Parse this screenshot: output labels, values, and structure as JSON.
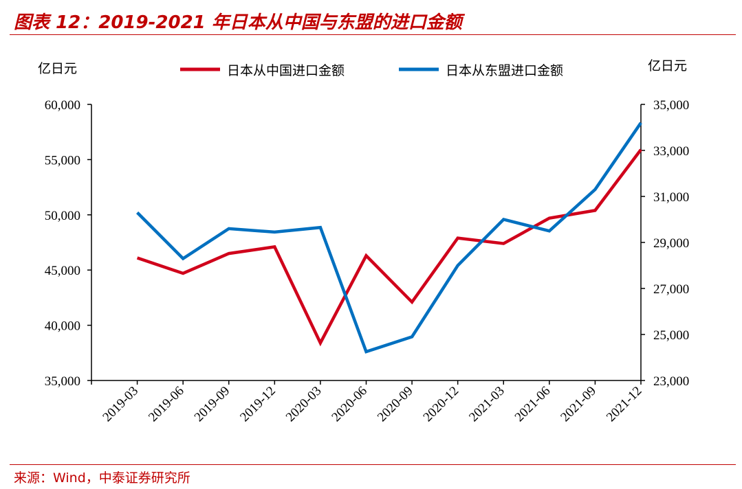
{
  "header": {
    "title": "图表 12：2019-2021 年日本从中国与东盟的进口金额"
  },
  "footer": {
    "source": "来源：Wind，中泰证券研究所"
  },
  "chart_data": {
    "type": "line",
    "x": [
      "2019-03",
      "2019-06",
      "2019-09",
      "2019-12",
      "2020-03",
      "2020-06",
      "2020-09",
      "2020-12",
      "2021-03",
      "2021-06",
      "2021-09",
      "2021-12"
    ],
    "y_left": {
      "unit": "亿日元",
      "range": [
        35000,
        60000
      ],
      "ticks": [
        "35,000",
        "40,000",
        "45,000",
        "50,000",
        "55,000",
        "60,000"
      ]
    },
    "y_right": {
      "unit": "亿日元",
      "range": [
        23000,
        35000
      ],
      "ticks": [
        "23,000",
        "25,000",
        "27,000",
        "29,000",
        "31,000",
        "33,000",
        "35,000"
      ]
    },
    "legend_position": "top",
    "series": [
      {
        "name": "日本从中国进口金额",
        "axis": "left",
        "color": "#d0021b",
        "values": [
          46100,
          44700,
          46500,
          47100,
          38400,
          46300,
          42100,
          47900,
          47400,
          49700,
          50400,
          55900
        ]
      },
      {
        "name": "日本从东盟进口金额",
        "axis": "right",
        "color": "#0070c0",
        "values": [
          30300,
          28300,
          29600,
          29450,
          29650,
          24250,
          24900,
          28000,
          30000,
          29500,
          31300,
          34200
        ]
      }
    ]
  }
}
